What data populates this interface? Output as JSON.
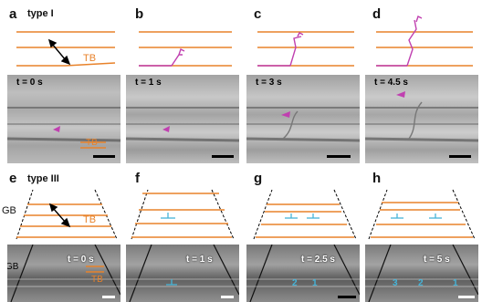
{
  "panels": {
    "a": {
      "letter": "a",
      "type_label": "type I",
      "tb_label": "TB",
      "time": "t = 0 s",
      "tb_photo_label": "TB"
    },
    "b": {
      "letter": "b",
      "time": "t = 1 s"
    },
    "c": {
      "letter": "c",
      "time": "t = 3 s"
    },
    "d": {
      "letter": "d",
      "time": "t = 4.5 s"
    },
    "e": {
      "letter": "e",
      "type_label": "type III",
      "gb_label": "GB",
      "tb_label": "TB",
      "time": "t = 0 s",
      "gb_photo_label": "GB",
      "tb_photo_label": "TB"
    },
    "f": {
      "letter": "f",
      "time": "t = 1 s"
    },
    "g": {
      "letter": "g",
      "time": "t = 2.5 s"
    },
    "h": {
      "letter": "h",
      "time": "t = 5 s"
    }
  },
  "colors": {
    "twin_boundary": "#e8822a",
    "dislocation": "#c040b0",
    "partial": "#46b4d8",
    "arrow": "#000000"
  },
  "photo_annotations": {
    "g_labels": [
      "2",
      "1"
    ],
    "h_labels": [
      "3",
      "2",
      "1"
    ]
  }
}
